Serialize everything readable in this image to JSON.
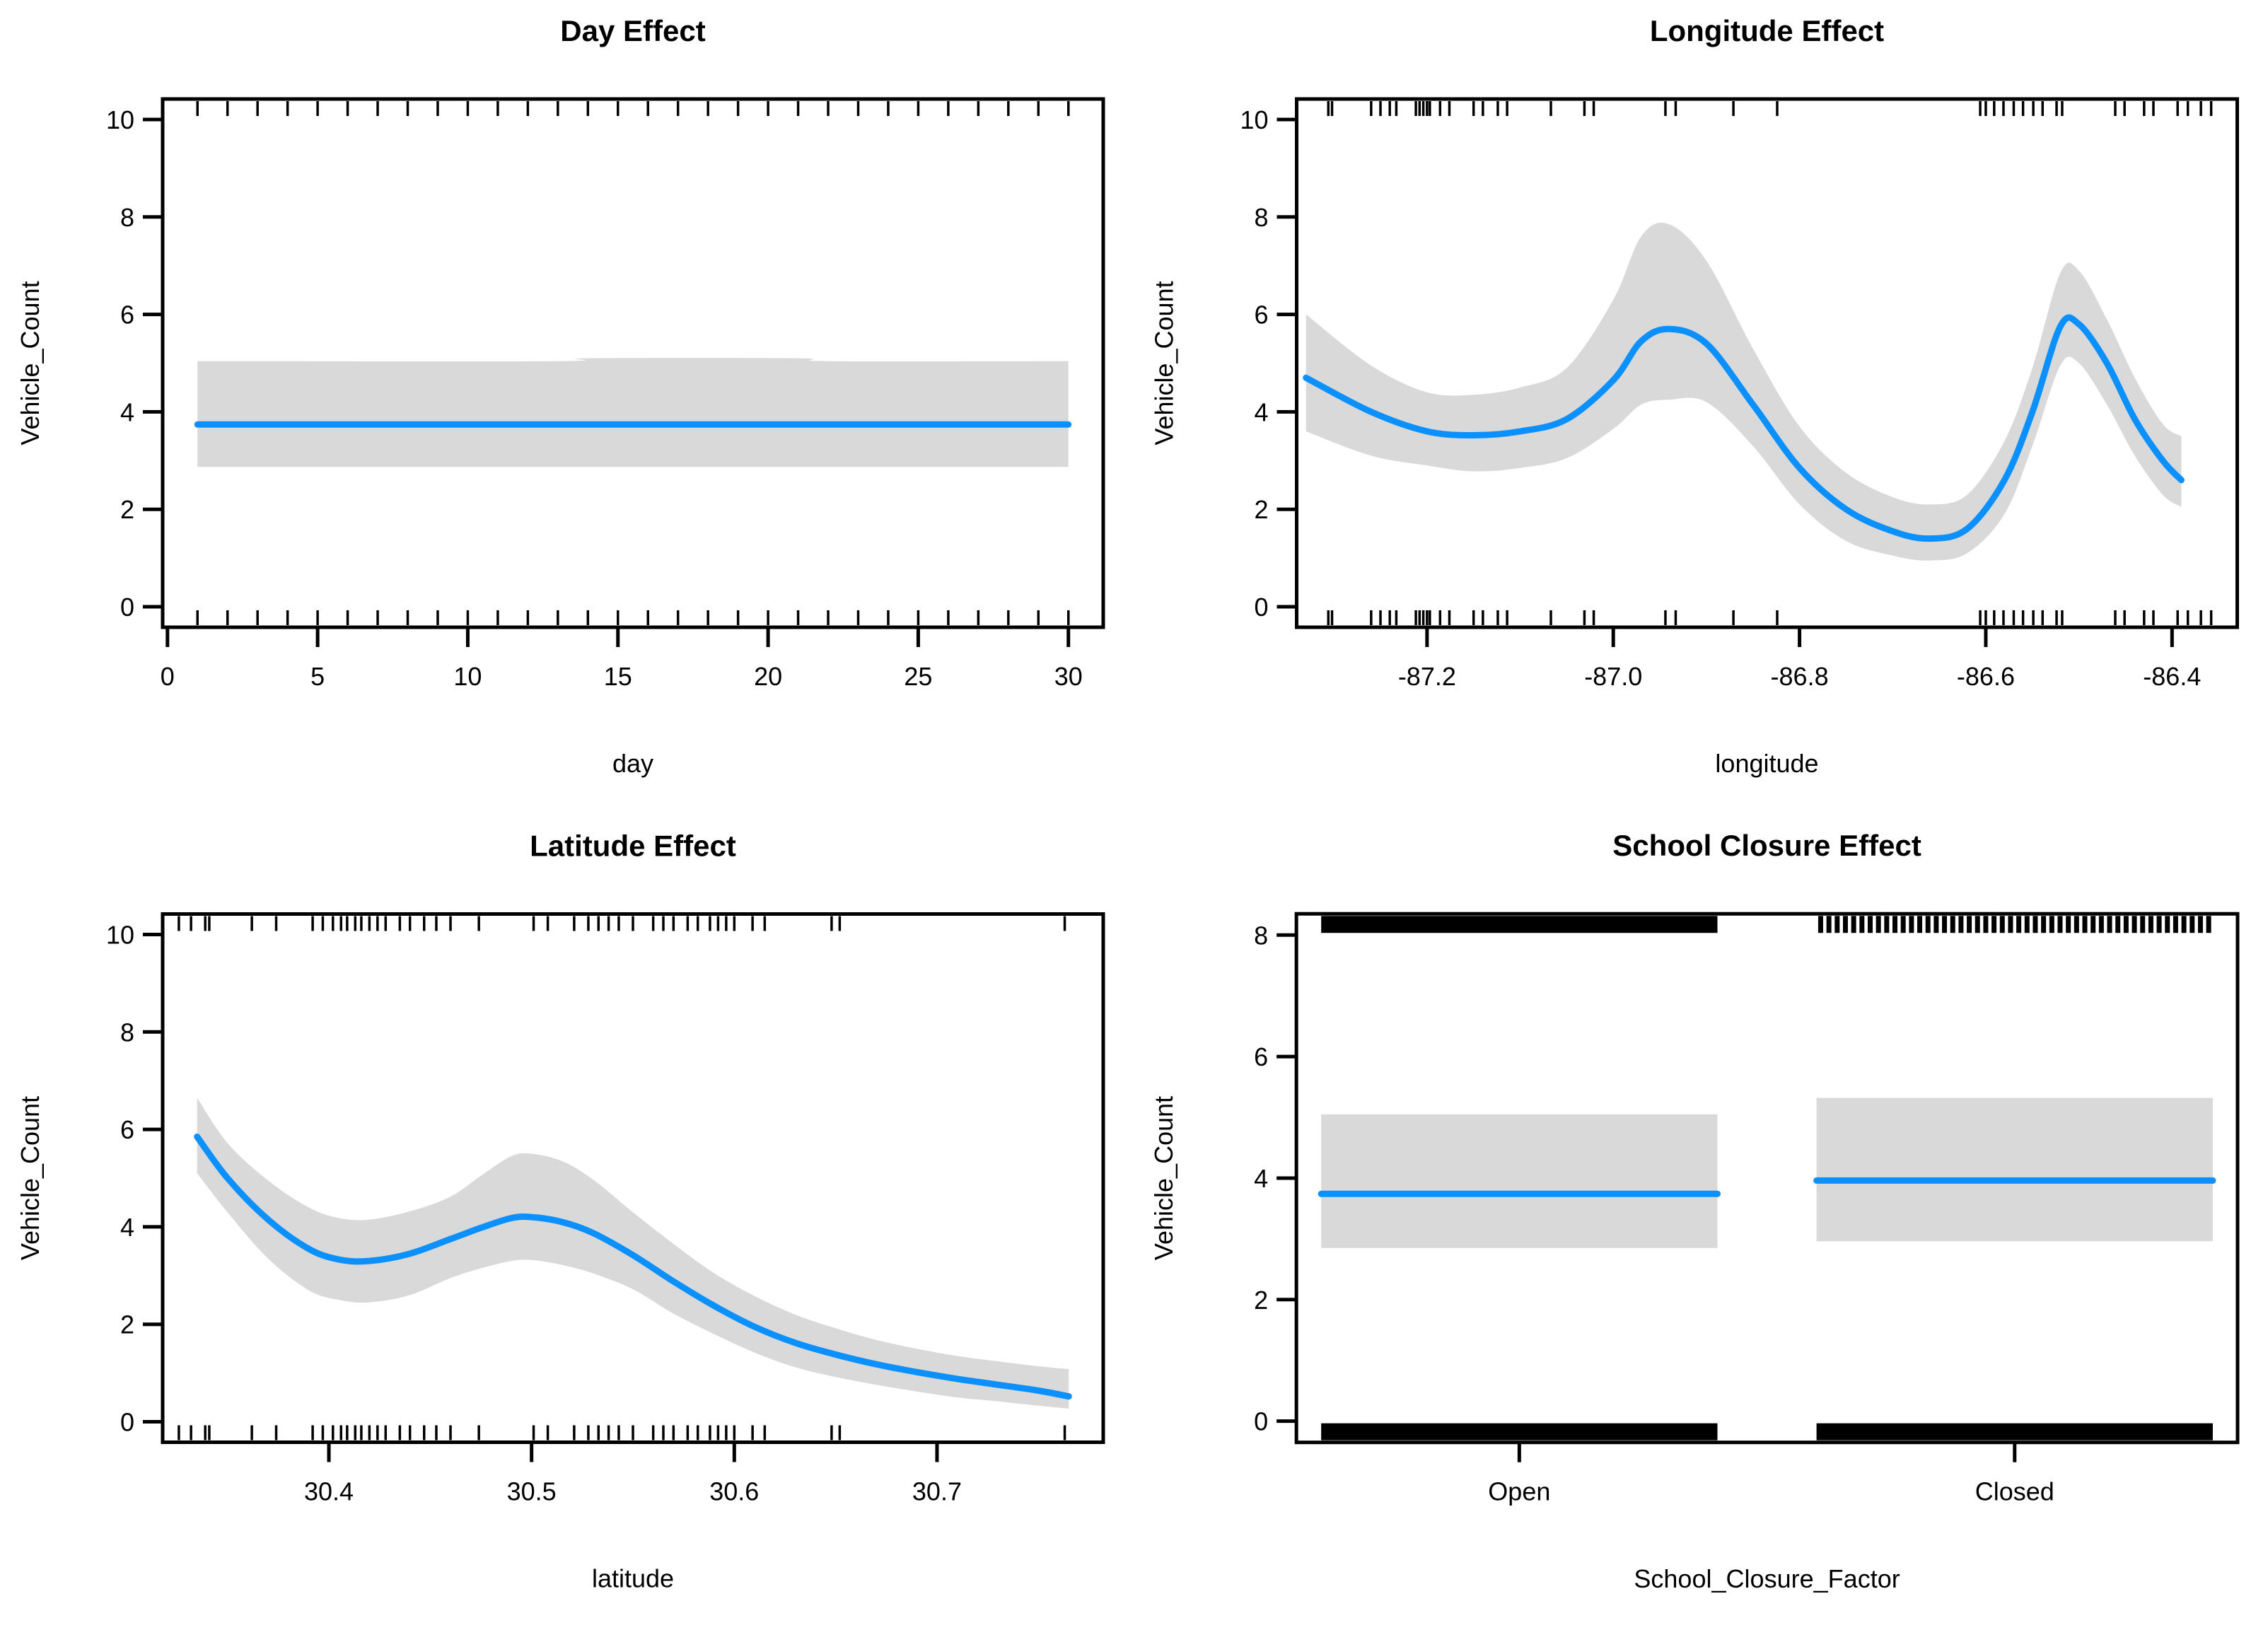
{
  "figure": {
    "background": "#ffffff",
    "line_color": "#0b90ff",
    "band_color": "#d9d9d9",
    "axis_color": "#000000",
    "text_color": "#000000"
  },
  "chart_data": [
    {
      "type": "line",
      "panel": "day-effect",
      "title": "Day Effect",
      "xlabel": "day",
      "ylabel": "Vehicle_Count",
      "xlim": [
        -0.16,
        31.16
      ],
      "ylim": [
        -0.42,
        10.42
      ],
      "grid": false,
      "legend": "none",
      "xticks": {
        "values": [
          0,
          5,
          10,
          15,
          20,
          25,
          30
        ],
        "labels": [
          "0",
          "5",
          "10",
          "15",
          "20",
          "25",
          "30"
        ]
      },
      "yticks": {
        "values": [
          0,
          2,
          4,
          6,
          8,
          10
        ],
        "labels": [
          "0",
          "2",
          "4",
          "6",
          "8",
          "10"
        ]
      },
      "series": [
        {
          "name": "smooth fit",
          "x": [
            1,
            13,
            14,
            21,
            22,
            30
          ],
          "y": [
            3.74,
            3.74,
            3.74,
            3.74,
            3.74,
            3.74
          ],
          "lo": [
            2.87,
            2.87,
            2.87,
            2.87,
            2.87,
            2.87
          ],
          "hi": [
            5.04,
            5.04,
            5.1,
            5.1,
            5.04,
            5.04
          ]
        }
      ],
      "rug_top": [
        1,
        2,
        3,
        4,
        5,
        6,
        7,
        8,
        9,
        10,
        11,
        12,
        13,
        14,
        15,
        16,
        17,
        18,
        19,
        20,
        21,
        22,
        23,
        24,
        25,
        26,
        27,
        28,
        29,
        30
      ],
      "rug_bottom": [
        1,
        2,
        3,
        4,
        5,
        6,
        7,
        8,
        9,
        10,
        11,
        12,
        13,
        14,
        15,
        16,
        17,
        18,
        19,
        20,
        21,
        22,
        23,
        24,
        25,
        26,
        27,
        28,
        29,
        30
      ]
    },
    {
      "type": "line",
      "panel": "longitude-effect",
      "title": "Longitude Effect",
      "xlabel": "longitude",
      "ylabel": "Vehicle_Count",
      "xlim": [
        -87.34,
        -86.33
      ],
      "ylim": [
        -0.42,
        10.42
      ],
      "grid": false,
      "legend": "none",
      "xticks": {
        "values": [
          -87.2,
          -87.0,
          -86.8,
          -86.6,
          -86.4
        ],
        "labels": [
          "-87.2",
          "-87.0",
          "-86.8",
          "-86.6",
          "-86.4"
        ]
      },
      "yticks": {
        "values": [
          0,
          2,
          4,
          6,
          8,
          10
        ],
        "labels": [
          "0",
          "2",
          "4",
          "6",
          "8",
          "10"
        ]
      },
      "series": [
        {
          "name": "smooth fit",
          "x": [
            -87.33,
            -87.26,
            -87.2,
            -87.15,
            -87.1,
            -87.05,
            -87.0,
            -86.97,
            -86.94,
            -86.9,
            -86.85,
            -86.8,
            -86.75,
            -86.7,
            -86.66,
            -86.62,
            -86.58,
            -86.55,
            -86.52,
            -86.5,
            -86.47,
            -86.44,
            -86.41,
            -86.39
          ],
          "y": [
            4.7,
            4.0,
            3.6,
            3.52,
            3.6,
            3.85,
            4.65,
            5.45,
            5.7,
            5.4,
            4.15,
            2.85,
            2.0,
            1.55,
            1.4,
            1.6,
            2.6,
            4.0,
            5.75,
            5.8,
            5.0,
            3.85,
            3.0,
            2.6
          ],
          "lo": [
            3.6,
            3.1,
            2.9,
            2.78,
            2.85,
            3.05,
            3.65,
            4.15,
            4.25,
            4.2,
            3.3,
            2.1,
            1.35,
            1.05,
            0.95,
            1.1,
            1.9,
            3.3,
            4.95,
            5.0,
            4.15,
            3.1,
            2.3,
            2.05
          ],
          "hi": [
            6.0,
            4.95,
            4.4,
            4.35,
            4.5,
            4.9,
            6.3,
            7.6,
            7.85,
            7.1,
            5.3,
            3.7,
            2.75,
            2.25,
            2.1,
            2.3,
            3.4,
            4.9,
            6.85,
            6.9,
            5.9,
            4.7,
            3.75,
            3.5
          ]
        }
      ],
      "rug_top": [
        -87.306,
        -87.302,
        -87.26,
        -87.25,
        -87.24,
        -87.233,
        -87.212,
        -87.208,
        -87.204,
        -87.2,
        -87.197,
        -87.186,
        -87.176,
        -87.15,
        -87.14,
        -87.124,
        -87.114,
        -87.067,
        -87.031,
        -87.021,
        -86.944,
        -86.933,
        -86.871,
        -86.824,
        -86.606,
        -86.6,
        -86.591,
        -86.581,
        -86.57,
        -86.56,
        -86.549,
        -86.539,
        -86.524,
        -86.518,
        -86.461,
        -86.451,
        -86.43,
        -86.42,
        -86.394,
        -86.383,
        -86.369,
        -86.358
      ],
      "rug_bottom": [
        -87.306,
        -87.302,
        -87.26,
        -87.25,
        -87.24,
        -87.233,
        -87.212,
        -87.208,
        -87.204,
        -87.2,
        -87.197,
        -87.186,
        -87.176,
        -87.15,
        -87.14,
        -87.124,
        -87.114,
        -87.067,
        -87.031,
        -87.021,
        -86.944,
        -86.933,
        -86.871,
        -86.824,
        -86.606,
        -86.6,
        -86.591,
        -86.581,
        -86.57,
        -86.56,
        -86.549,
        -86.539,
        -86.524,
        -86.518,
        -86.461,
        -86.451,
        -86.43,
        -86.42,
        -86.394,
        -86.383,
        -86.369,
        -86.358
      ]
    },
    {
      "type": "line",
      "panel": "latitude-effect",
      "title": "Latitude Effect",
      "xlabel": "latitude",
      "ylabel": "Vehicle_Count",
      "xlim": [
        30.318,
        30.782
      ],
      "ylim": [
        -0.42,
        10.42
      ],
      "grid": false,
      "legend": "none",
      "xticks": {
        "values": [
          30.4,
          30.5,
          30.6,
          30.7
        ],
        "labels": [
          "30.4",
          "30.5",
          "30.6",
          "30.7"
        ]
      },
      "yticks": {
        "values": [
          0,
          2,
          4,
          6,
          8,
          10
        ],
        "labels": [
          "0",
          "2",
          "4",
          "6",
          "8",
          "10"
        ]
      },
      "series": [
        {
          "name": "smooth fit",
          "x": [
            30.335,
            30.35,
            30.37,
            30.39,
            30.405,
            30.42,
            30.44,
            30.46,
            30.475,
            30.49,
            30.5,
            30.515,
            30.53,
            30.55,
            30.57,
            30.59,
            30.61,
            30.63,
            30.65,
            30.67,
            30.69,
            30.71,
            30.73,
            30.75,
            30.765
          ],
          "y": [
            5.85,
            5.0,
            4.15,
            3.55,
            3.33,
            3.3,
            3.45,
            3.75,
            3.98,
            4.18,
            4.2,
            4.1,
            3.88,
            3.42,
            2.88,
            2.38,
            1.95,
            1.62,
            1.38,
            1.18,
            1.02,
            0.88,
            0.76,
            0.64,
            0.52
          ],
          "lo": [
            5.1,
            4.3,
            3.35,
            2.7,
            2.5,
            2.45,
            2.6,
            2.95,
            3.15,
            3.3,
            3.32,
            3.22,
            3.05,
            2.72,
            2.22,
            1.8,
            1.42,
            1.12,
            0.92,
            0.76,
            0.62,
            0.5,
            0.42,
            0.33,
            0.27
          ],
          "hi": [
            6.65,
            5.72,
            4.95,
            4.4,
            4.18,
            4.15,
            4.32,
            4.62,
            5.05,
            5.45,
            5.5,
            5.35,
            4.98,
            4.3,
            3.65,
            3.05,
            2.58,
            2.2,
            1.92,
            1.68,
            1.5,
            1.35,
            1.24,
            1.14,
            1.08
          ]
        }
      ],
      "rug_top": [
        30.326,
        30.332,
        30.339,
        30.341,
        30.362,
        30.374,
        30.392,
        30.397,
        30.402,
        30.406,
        30.409,
        30.413,
        30.416,
        30.42,
        30.424,
        30.428,
        30.435,
        30.44,
        30.447,
        30.453,
        30.46,
        30.474,
        30.501,
        30.508,
        30.521,
        30.528,
        30.533,
        30.538,
        30.543,
        30.55,
        30.56,
        30.565,
        30.57,
        30.577,
        30.582,
        30.588,
        30.592,
        30.596,
        30.6,
        30.609,
        30.615,
        30.648,
        30.652,
        30.763
      ],
      "rug_bottom": [
        30.326,
        30.332,
        30.339,
        30.341,
        30.362,
        30.374,
        30.392,
        30.397,
        30.402,
        30.406,
        30.409,
        30.413,
        30.416,
        30.42,
        30.424,
        30.428,
        30.435,
        30.44,
        30.447,
        30.453,
        30.46,
        30.474,
        30.501,
        30.508,
        30.521,
        30.528,
        30.533,
        30.538,
        30.543,
        30.55,
        30.56,
        30.565,
        30.57,
        30.577,
        30.582,
        30.588,
        30.592,
        30.596,
        30.6,
        30.609,
        30.615,
        30.648,
        30.652,
        30.763
      ]
    },
    {
      "type": "factor",
      "panel": "school-closure-effect",
      "title": "School Closure Effect",
      "xlabel": "School_Closure_Factor",
      "ylabel": "Vehicle_Count",
      "xlim": [
        0.55,
        2.45
      ],
      "ylim": [
        -0.35,
        8.35
      ],
      "grid": false,
      "legend": "none",
      "xticks": {
        "values": [
          1,
          2
        ],
        "labels": [
          "Open",
          "Closed"
        ]
      },
      "yticks": {
        "values": [
          0,
          2,
          4,
          6,
          8
        ],
        "labels": [
          "0",
          "2",
          "4",
          "6",
          "8"
        ]
      },
      "categories": [
        {
          "label": "Open",
          "center": 1,
          "x0": 0.6,
          "x1": 1.4,
          "fit": 3.74,
          "lo": 2.85,
          "hi": 5.05,
          "rug_top": "bar",
          "rug_bottom": "bar"
        },
        {
          "label": "Closed",
          "center": 2,
          "x0": 1.6,
          "x1": 2.4,
          "fit": 3.96,
          "lo": 2.96,
          "hi": 5.32,
          "rug_top": "ticks",
          "rug_bottom": "bar"
        }
      ],
      "rug_tick_count": 48
    }
  ]
}
